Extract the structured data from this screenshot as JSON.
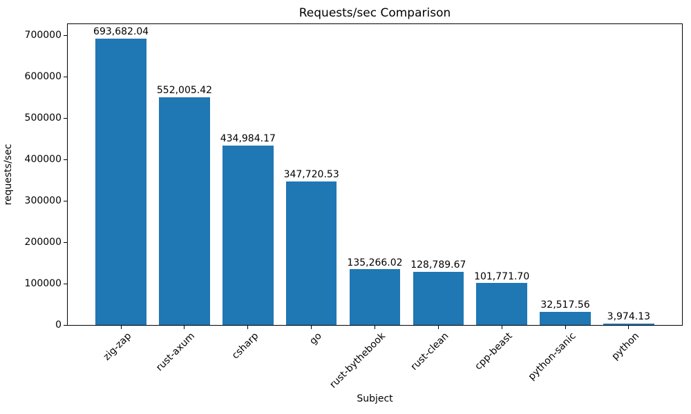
{
  "chart_data": {
    "type": "bar",
    "title": "Requests/sec Comparison",
    "xlabel": "Subject",
    "ylabel": "requests/sec",
    "categories": [
      "zig-zap",
      "rust-axum",
      "csharp",
      "go",
      "rust-bythebook",
      "rust-clean",
      "cpp-beast",
      "python-sanic",
      "python"
    ],
    "values": [
      693682.04,
      552005.42,
      434984.17,
      347720.53,
      135266.02,
      128789.67,
      101771.7,
      32517.56,
      3974.13
    ],
    "value_labels": [
      "693,682.04",
      "552,005.42",
      "434,984.17",
      "347,720.53",
      "135,266.02",
      "128,789.67",
      "101,771.70",
      "32,517.56",
      "3,974.13"
    ],
    "ytick_values": [
      0,
      100000,
      200000,
      300000,
      400000,
      500000,
      600000,
      700000
    ],
    "ytick_labels": [
      "0",
      "100000",
      "200000",
      "300000",
      "400000",
      "500000",
      "600000",
      "700000"
    ],
    "ylim": [
      0,
      728366
    ],
    "bar_color": "#1f77b4",
    "grid": false,
    "legend": null,
    "xtick_rotation": 45,
    "bar_width_fraction": 0.8
  }
}
